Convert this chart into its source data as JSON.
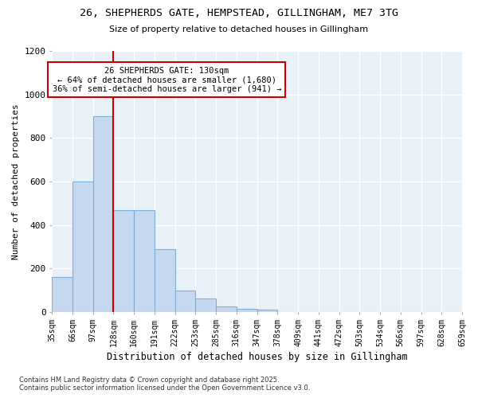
{
  "title_line1": "26, SHEPHERDS GATE, HEMPSTEAD, GILLINGHAM, ME7 3TG",
  "title_line2": "Size of property relative to detached houses in Gillingham",
  "xlabel": "Distribution of detached houses by size in Gillingham",
  "ylabel": "Number of detached properties",
  "bar_values": [
    160,
    600,
    900,
    470,
    470,
    290,
    100,
    63,
    28,
    15,
    10,
    0,
    0,
    0,
    0,
    0,
    0,
    0,
    0,
    0
  ],
  "bin_labels": [
    "35sqm",
    "66sqm",
    "97sqm",
    "128sqm",
    "160sqm",
    "191sqm",
    "222sqm",
    "253sqm",
    "285sqm",
    "316sqm",
    "347sqm",
    "378sqm",
    "409sqm",
    "441sqm",
    "472sqm",
    "503sqm",
    "534sqm",
    "566sqm",
    "597sqm",
    "628sqm",
    "659sqm"
  ],
  "bar_color": "#c5d8f0",
  "bar_edge_color": "#7bafd4",
  "plot_bg_color": "#e8f0f8",
  "fig_bg_color": "#ffffff",
  "grid_color": "#ffffff",
  "vline_color": "#cc0000",
  "vline_x": 3,
  "annotation_title": "26 SHEPHERDS GATE: 130sqm",
  "annotation_line1": "← 64% of detached houses are smaller (1,680)",
  "annotation_line2": "36% of semi-detached houses are larger (941) →",
  "annotation_box_facecolor": "#ffffff",
  "annotation_box_edgecolor": "#cc0000",
  "ylim": [
    0,
    1200
  ],
  "yticks": [
    0,
    200,
    400,
    600,
    800,
    1000,
    1200
  ],
  "footnote1": "Contains HM Land Registry data © Crown copyright and database right 2025.",
  "footnote2": "Contains public sector information licensed under the Open Government Licence v3.0."
}
